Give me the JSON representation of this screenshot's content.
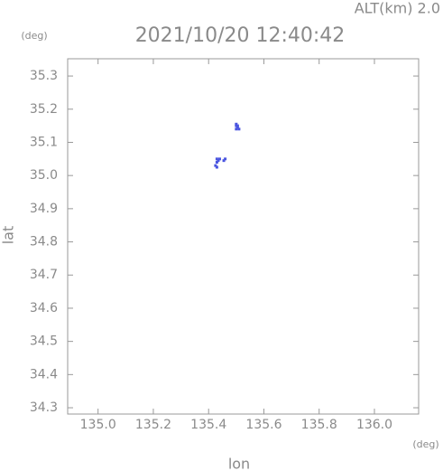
{
  "chart_data": {
    "type": "scatter",
    "title": "2021/10/20 12:40:42",
    "annotation": "ALT(km) 2.0",
    "y_unit": "(deg)",
    "x_unit": "(deg)",
    "y_label": "lat",
    "x_label": "lon",
    "color": "#4a55e0",
    "x": [
      135.5,
      135.5,
      135.505,
      135.5,
      135.51,
      135.505,
      135.43,
      135.44,
      135.43,
      135.425,
      135.43,
      135.46,
      135.455,
      135.435
    ],
    "values": [
      35.155,
      35.15,
      35.145,
      35.14,
      35.14,
      35.15,
      35.05,
      35.05,
      35.04,
      35.03,
      35.025,
      35.05,
      35.045,
      35.045
    ],
    "xlim": [
      134.89,
      136.16
    ],
    "ylim": [
      34.281,
      35.352
    ],
    "xticks": [
      {
        "value": 135,
        "label": "135.0"
      },
      135.2,
      135.4,
      135.6,
      135.8,
      {
        "value": 136,
        "label": "136.0"
      }
    ],
    "yticks": [
      34.3,
      34.4,
      34.5,
      34.6,
      34.7,
      34.8,
      34.9,
      {
        "value": 35,
        "label": "35.0"
      },
      35.1,
      35.2,
      35.3
    ]
  }
}
